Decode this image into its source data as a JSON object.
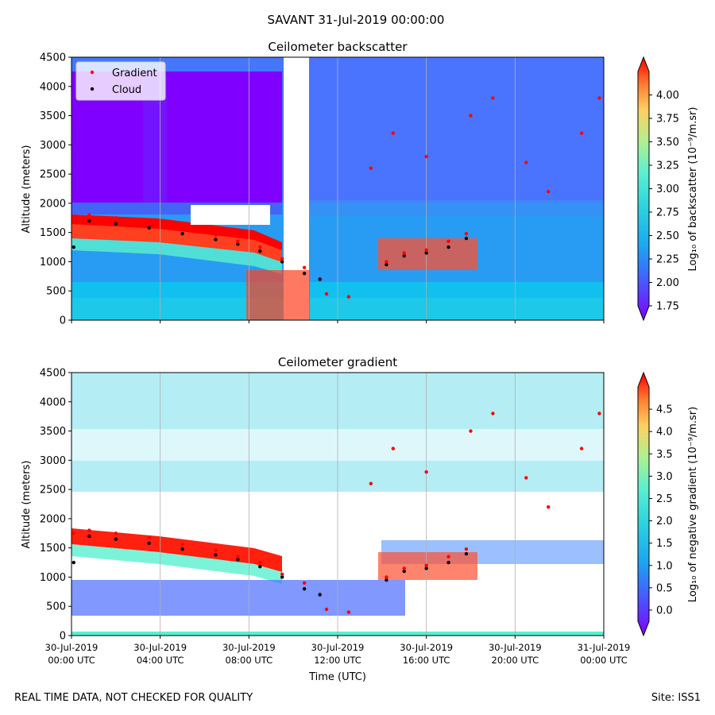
{
  "page_title": "SAVANT 31-Jul-2019 00:00:00",
  "footer": {
    "left": "REAL TIME DATA, NOT CHECKED FOR QUALITY",
    "right": "Site: ISS1"
  },
  "colors": {
    "gradient_marker": "#ff0000",
    "cloud_marker": "#000000",
    "colormap": [
      "#8000ff",
      "#4a55ff",
      "#1ca6f0",
      "#5af0d0",
      "#b0f090",
      "#ffd060",
      "#ff7a30",
      "#ff0000"
    ]
  },
  "chart_data": [
    {
      "type": "heatmap",
      "title": "Ceilometer backscatter",
      "ylabel": "Altitude (meters)",
      "ylim": [
        0,
        4500
      ],
      "yticks": [
        "0",
        "500",
        "1000",
        "1500",
        "2000",
        "2500",
        "3000",
        "3500",
        "4000",
        "4500"
      ],
      "xlim_hours": [
        0,
        24
      ],
      "legend": [
        "Gradient",
        "Cloud"
      ],
      "legend_position": "top-left",
      "colorbar": {
        "label": "Log₁₀ of backscatter (10⁻⁹/m.sr)",
        "range": [
          1.75,
          4.25
        ],
        "ticks": [
          "1.75",
          "2.00",
          "2.25",
          "2.50",
          "2.75",
          "3.00",
          "3.25",
          "3.50",
          "3.75",
          "4.00"
        ]
      },
      "series": [
        {
          "name": "Cloud",
          "points": [
            [
              0.1,
              1250
            ],
            [
              0.8,
              1700
            ],
            [
              2,
              1650
            ],
            [
              3.5,
              1580
            ],
            [
              5,
              1480
            ],
            [
              6.5,
              1380
            ],
            [
              7.5,
              1300
            ],
            [
              8.5,
              1180
            ],
            [
              9.5,
              1000
            ],
            [
              10.5,
              800
            ],
            [
              11.2,
              700
            ],
            [
              14.2,
              950
            ],
            [
              15,
              1100
            ],
            [
              16,
              1150
            ],
            [
              17,
              1250
            ],
            [
              17.8,
              1400
            ]
          ]
        },
        {
          "name": "Gradient",
          "points": [
            [
              0.1,
              1750
            ],
            [
              0.8,
              1800
            ],
            [
              2,
              1750
            ],
            [
              3.5,
              1680
            ],
            [
              5,
              1560
            ],
            [
              6.5,
              1460
            ],
            [
              7.5,
              1350
            ],
            [
              8.5,
              1250
            ],
            [
              9.5,
              1050
            ],
            [
              10.5,
              900
            ],
            [
              11.5,
              450
            ],
            [
              12.5,
              400
            ],
            [
              14.2,
              1000
            ],
            [
              15,
              1150
            ],
            [
              16,
              1200
            ],
            [
              17,
              1350
            ],
            [
              17.8,
              1480
            ],
            [
              13.5,
              2600
            ],
            [
              14.5,
              3200
            ],
            [
              16,
              2800
            ],
            [
              18,
              3500
            ],
            [
              19,
              3800
            ],
            [
              20.5,
              2700
            ],
            [
              21.5,
              2200
            ],
            [
              23,
              3200
            ],
            [
              23.8,
              3800
            ]
          ]
        }
      ]
    },
    {
      "type": "heatmap",
      "title": "Ceilometer gradient",
      "xlabel": "Time (UTC)",
      "ylabel": "Altitude (meters)",
      "ylim": [
        0,
        4500
      ],
      "yticks": [
        "0",
        "500",
        "1000",
        "1500",
        "2000",
        "2500",
        "3000",
        "3500",
        "4000",
        "4500"
      ],
      "xlim_hours": [
        0,
        24
      ],
      "xticks": [
        {
          "h": 0,
          "label1": "30-Jul-2019",
          "label2": "00:00 UTC"
        },
        {
          "h": 4,
          "label1": "30-Jul-2019",
          "label2": "04:00 UTC"
        },
        {
          "h": 8,
          "label1": "30-Jul-2019",
          "label2": "08:00 UTC"
        },
        {
          "h": 12,
          "label1": "30-Jul-2019",
          "label2": "12:00 UTC"
        },
        {
          "h": 16,
          "label1": "30-Jul-2019",
          "label2": "16:00 UTC"
        },
        {
          "h": 20,
          "label1": "30-Jul-2019",
          "label2": "20:00 UTC"
        },
        {
          "h": 24,
          "label1": "31-Jul-2019",
          "label2": "00:00 UTC"
        }
      ],
      "colorbar": {
        "label": "Log₁₀ of negative gradient (10⁻⁹/m.sr)",
        "range": [
          -0.25,
          5.0
        ],
        "ticks": [
          "0.0",
          "0.5",
          "1.0",
          "1.5",
          "2.0",
          "2.5",
          "3.0",
          "3.5",
          "4.0",
          "4.5"
        ]
      },
      "series": [
        {
          "name": "Cloud",
          "points": [
            [
              0.1,
              1250
            ],
            [
              0.8,
              1700
            ],
            [
              2,
              1650
            ],
            [
              3.5,
              1580
            ],
            [
              5,
              1480
            ],
            [
              6.5,
              1380
            ],
            [
              7.5,
              1300
            ],
            [
              8.5,
              1180
            ],
            [
              9.5,
              1000
            ],
            [
              10.5,
              800
            ],
            [
              11.2,
              700
            ],
            [
              14.2,
              950
            ],
            [
              15,
              1100
            ],
            [
              16,
              1150
            ],
            [
              17,
              1250
            ],
            [
              17.8,
              1400
            ]
          ]
        },
        {
          "name": "Gradient",
          "points": [
            [
              0.1,
              1750
            ],
            [
              0.8,
              1800
            ],
            [
              2,
              1750
            ],
            [
              3.5,
              1680
            ],
            [
              5,
              1560
            ],
            [
              6.5,
              1460
            ],
            [
              7.5,
              1350
            ],
            [
              8.5,
              1250
            ],
            [
              9.5,
              1050
            ],
            [
              10.5,
              900
            ],
            [
              11.5,
              450
            ],
            [
              12.5,
              400
            ],
            [
              14.2,
              1000
            ],
            [
              15,
              1150
            ],
            [
              16,
              1200
            ],
            [
              17,
              1350
            ],
            [
              17.8,
              1480
            ],
            [
              13.5,
              2600
            ],
            [
              14.5,
              3200
            ],
            [
              16,
              2800
            ],
            [
              18,
              3500
            ],
            [
              19,
              3800
            ],
            [
              20.5,
              2700
            ],
            [
              21.5,
              2200
            ],
            [
              23,
              3200
            ],
            [
              23.8,
              3800
            ]
          ]
        }
      ]
    }
  ]
}
